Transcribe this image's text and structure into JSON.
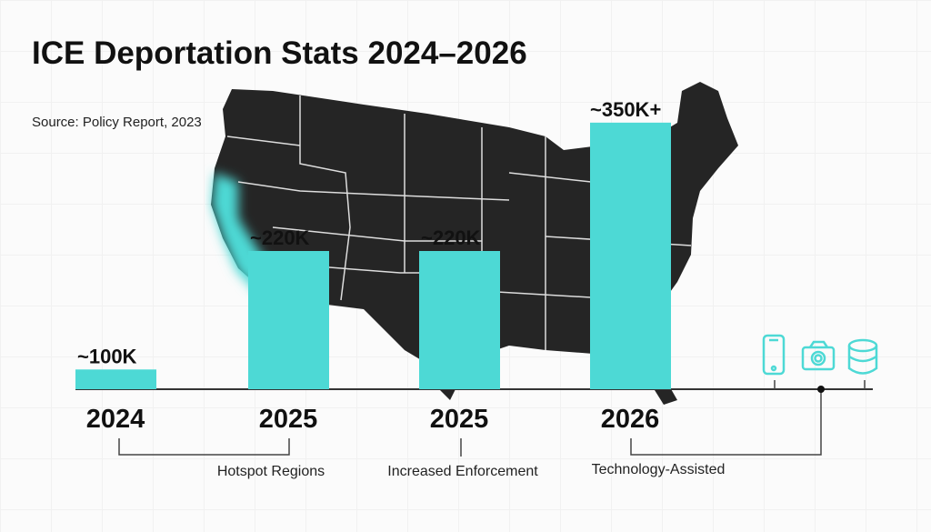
{
  "chart_data": {
    "type": "bar",
    "title": "ICE Deportation Stats 2024–2026",
    "subtitle": "Source: Policy Report, 2023",
    "categories": [
      "2024",
      "2025",
      "2025",
      "2026"
    ],
    "values": [
      100,
      220,
      220,
      350
    ],
    "value_labels": [
      "~100K",
      "~220K",
      "~220K",
      "~350K+"
    ],
    "ylim": [
      80,
      360
    ],
    "xlabel": "",
    "ylabel": "",
    "bar_color": "#4dd9d5",
    "groups": [
      {
        "label": "Hotspot Regions"
      },
      {
        "label": "Increased Enforcement"
      },
      {
        "label": "Technology-Assisted"
      }
    ],
    "icons": [
      "smartphone-icon",
      "camera-icon",
      "database-icon"
    ]
  }
}
